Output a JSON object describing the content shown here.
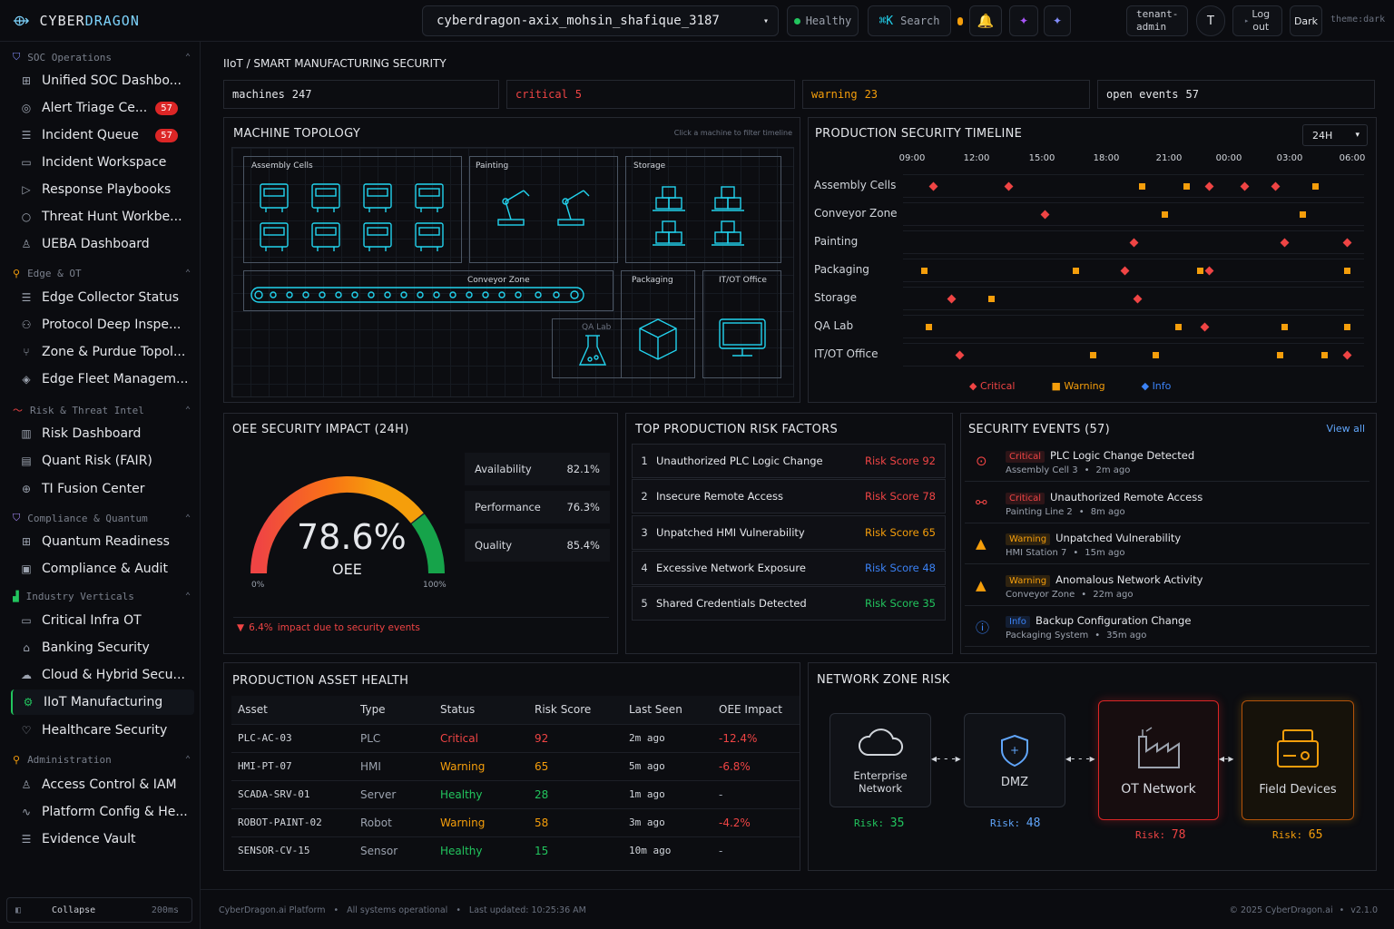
{
  "brand": {
    "prefix": "CYBER",
    "suffix": "DRAGON"
  },
  "topbar": {
    "workspace": "cyberdragon-axix_mohsin_shafique_3187",
    "status": "Healthy",
    "search_shortcut": "⌘K",
    "search_label": "Search",
    "tenant": "tenant-\nadmin",
    "avatar": "T",
    "logout": "Log\nout",
    "theme_btn": "Dark",
    "theme_label": "theme:dark"
  },
  "sidebar": {
    "soc": {
      "title": "SOC Operations",
      "items": [
        {
          "label": "Unified SOC Dashbo..."
        },
        {
          "label": "Alert Triage Ce...",
          "badge": "57"
        },
        {
          "label": "Incident Queue",
          "badge": "57"
        },
        {
          "label": "Incident Workspace"
        },
        {
          "label": "Response Playbooks"
        },
        {
          "label": "Threat Hunt Workbe..."
        },
        {
          "label": "UEBA Dashboard"
        }
      ]
    },
    "edge": {
      "title": "Edge & OT",
      "items": [
        {
          "label": "Edge Collector Status"
        },
        {
          "label": "Protocol Deep Inspe..."
        },
        {
          "label": "Zone & Purdue Topol..."
        },
        {
          "label": "Edge Fleet Managem..."
        }
      ]
    },
    "risk": {
      "title": "Risk & Threat Intel",
      "items": [
        {
          "label": "Risk Dashboard"
        },
        {
          "label": "Quant Risk (FAIR)"
        },
        {
          "label": "TI Fusion Center"
        }
      ]
    },
    "comp": {
      "title": "Compliance & Quantum",
      "items": [
        {
          "label": "Quantum Readiness"
        },
        {
          "label": "Compliance & Audit"
        }
      ]
    },
    "ind": {
      "title": "Industry Verticals",
      "items": [
        {
          "label": "Critical Infra OT"
        },
        {
          "label": "Banking Security"
        },
        {
          "label": "Cloud & Hybrid Secu..."
        },
        {
          "label": "IIoT Manufacturing"
        },
        {
          "label": "Healthcare Security"
        }
      ]
    },
    "admin": {
      "title": "Administration",
      "items": [
        {
          "label": "Access Control & IAM"
        },
        {
          "label": "Platform Config & He..."
        },
        {
          "label": "Evidence Vault"
        }
      ]
    },
    "collapse": "Collapse",
    "collapse_ms": "200ms"
  },
  "page": {
    "breadcrumb": "IIoT / SMART MANUFACTURING SECURITY",
    "stats": [
      {
        "label": "machines",
        "value": "247"
      },
      {
        "label": "critical",
        "value": "5"
      },
      {
        "label": "warning",
        "value": "23"
      },
      {
        "label": "open events",
        "value": "57"
      }
    ]
  },
  "topology": {
    "title": "MACHINE TOPOLOGY",
    "hint": "Click a machine to filter timeline",
    "zones": {
      "assembly": "Assembly Cells",
      "painting": "Painting",
      "storage": "Storage",
      "conveyor": "Conveyor Zone",
      "packaging": "Packaging",
      "itot": "IT/OT Office",
      "qa": "QA Lab"
    }
  },
  "timeline": {
    "title": "PRODUCTION SECURITY TIMELINE",
    "range": "24H",
    "hours": [
      "09:00",
      "12:00",
      "15:00",
      "18:00",
      "21:00",
      "00:00",
      "03:00",
      "06:00"
    ],
    "rows": [
      "Assembly Cells",
      "Conveyor Zone",
      "Painting",
      "Packaging",
      "Storage",
      "QA Lab",
      "IT/OT Office"
    ],
    "legend": [
      "Critical",
      "Warning",
      "Info"
    ],
    "events": [
      {
        "row": 0,
        "t": 0.05,
        "sev": "critical"
      },
      {
        "row": 0,
        "t": 0.22,
        "sev": "critical"
      },
      {
        "row": 0,
        "t": 0.52,
        "sev": "warning"
      },
      {
        "row": 0,
        "t": 0.62,
        "sev": "warning"
      },
      {
        "row": 0,
        "t": 0.67,
        "sev": "critical"
      },
      {
        "row": 0,
        "t": 0.75,
        "sev": "critical"
      },
      {
        "row": 0,
        "t": 0.82,
        "sev": "critical"
      },
      {
        "row": 0,
        "t": 0.91,
        "sev": "warning"
      },
      {
        "row": 1,
        "t": 0.3,
        "sev": "critical"
      },
      {
        "row": 1,
        "t": 0.57,
        "sev": "warning"
      },
      {
        "row": 1,
        "t": 0.88,
        "sev": "warning"
      },
      {
        "row": 2,
        "t": 0.5,
        "sev": "critical"
      },
      {
        "row": 2,
        "t": 0.84,
        "sev": "critical"
      },
      {
        "row": 2,
        "t": 0.98,
        "sev": "critical"
      },
      {
        "row": 3,
        "t": 0.03,
        "sev": "warning"
      },
      {
        "row": 3,
        "t": 0.37,
        "sev": "warning"
      },
      {
        "row": 3,
        "t": 0.48,
        "sev": "critical"
      },
      {
        "row": 3,
        "t": 0.65,
        "sev": "warning"
      },
      {
        "row": 3,
        "t": 0.67,
        "sev": "critical"
      },
      {
        "row": 3,
        "t": 0.98,
        "sev": "warning"
      },
      {
        "row": 4,
        "t": 0.09,
        "sev": "critical"
      },
      {
        "row": 4,
        "t": 0.18,
        "sev": "warning"
      },
      {
        "row": 4,
        "t": 0.51,
        "sev": "critical"
      },
      {
        "row": 5,
        "t": 0.04,
        "sev": "warning"
      },
      {
        "row": 5,
        "t": 0.6,
        "sev": "warning"
      },
      {
        "row": 5,
        "t": 0.66,
        "sev": "critical"
      },
      {
        "row": 5,
        "t": 0.84,
        "sev": "warning"
      },
      {
        "row": 5,
        "t": 0.98,
        "sev": "warning"
      },
      {
        "row": 6,
        "t": 0.11,
        "sev": "critical"
      },
      {
        "row": 6,
        "t": 0.41,
        "sev": "warning"
      },
      {
        "row": 6,
        "t": 0.55,
        "sev": "warning"
      },
      {
        "row": 6,
        "t": 0.83,
        "sev": "warning"
      },
      {
        "row": 6,
        "t": 0.93,
        "sev": "warning"
      },
      {
        "row": 6,
        "t": 0.98,
        "sev": "critical"
      }
    ]
  },
  "oee": {
    "title": "OEE SECURITY IMPACT (24H)",
    "value": "78.6%",
    "label": "OEE",
    "fraction": 0.786,
    "min": "0%",
    "max": "100%",
    "metrics": [
      {
        "label": "Availability",
        "value": "82.1%"
      },
      {
        "label": "Performance",
        "value": "76.3%"
      },
      {
        "label": "Quality",
        "value": "85.4%"
      }
    ],
    "impact_value": "6.4%",
    "impact_text": "impact due to security events"
  },
  "risks": {
    "title": "TOP PRODUCTION RISK FACTORS",
    "score_prefix": "Risk Score",
    "items": [
      {
        "n": "1",
        "label": "Unauthorized PLC Logic Change",
        "score": "92"
      },
      {
        "n": "2",
        "label": "Insecure Remote Access",
        "score": "78"
      },
      {
        "n": "3",
        "label": "Unpatched HMI Vulnerability",
        "score": "65"
      },
      {
        "n": "4",
        "label": "Excessive Network Exposure",
        "score": "48"
      },
      {
        "n": "5",
        "label": "Shared Credentials Detected",
        "score": "35"
      }
    ]
  },
  "events": {
    "title": "SECURITY EVENTS (57)",
    "view_all": "View all",
    "items": [
      {
        "sev": "Critical",
        "title": "PLC Logic Change Detected",
        "source": "Assembly Cell 3",
        "time": "2m ago"
      },
      {
        "sev": "Critical",
        "title": "Unauthorized Remote Access",
        "source": "Painting Line 2",
        "time": "8m ago"
      },
      {
        "sev": "Warning",
        "title": "Unpatched Vulnerability",
        "source": "HMI Station 7",
        "time": "15m ago"
      },
      {
        "sev": "Warning",
        "title": "Anomalous Network Activity",
        "source": "Conveyor Zone",
        "time": "22m ago"
      },
      {
        "sev": "Info",
        "title": "Backup Configuration Change",
        "source": "Packaging System",
        "time": "35m ago"
      }
    ]
  },
  "assets": {
    "title": "PRODUCTION ASSET HEALTH",
    "columns": [
      "Asset",
      "Type",
      "Status",
      "Risk Score",
      "Last Seen",
      "OEE Impact"
    ],
    "rows": [
      {
        "asset": "PLC-AC-03",
        "type": "PLC",
        "status": "Critical",
        "score": "92",
        "seen": "2m ago",
        "impact": "-12.4%"
      },
      {
        "asset": "HMI-PT-07",
        "type": "HMI",
        "status": "Warning",
        "score": "65",
        "seen": "5m ago",
        "impact": "-6.8%"
      },
      {
        "asset": "SCADA-SRV-01",
        "type": "Server",
        "status": "Healthy",
        "score": "28",
        "seen": "1m ago",
        "impact": "-"
      },
      {
        "asset": "ROBOT-PAINT-02",
        "type": "Robot",
        "status": "Warning",
        "score": "58",
        "seen": "3m ago",
        "impact": "-4.2%"
      },
      {
        "asset": "SENSOR-CV-15",
        "type": "Sensor",
        "status": "Healthy",
        "score": "15",
        "seen": "10m ago",
        "impact": "-"
      }
    ]
  },
  "zones": {
    "title": "NETWORK ZONE RISK",
    "risk_label": "Risk:",
    "items": [
      {
        "name": "Enterprise\nNetwork",
        "risk": "35"
      },
      {
        "name": "DMZ",
        "risk": "48"
      },
      {
        "name": "OT Network",
        "risk": "78"
      },
      {
        "name": "Field Devices",
        "risk": "65"
      }
    ]
  },
  "footer": {
    "platform": "CyberDragon.ai Platform",
    "status": "All systems operational",
    "updated": "Last updated: 10:25:36 AM",
    "copyright": "© 2025 CyberDragon.ai",
    "version": "v2.1.0"
  },
  "colors": {
    "critical": "#ef4444",
    "warning": "#f59e0b",
    "info": "#3b82f6",
    "healthy": "#22c55e",
    "accent": "#22d3ee"
  }
}
